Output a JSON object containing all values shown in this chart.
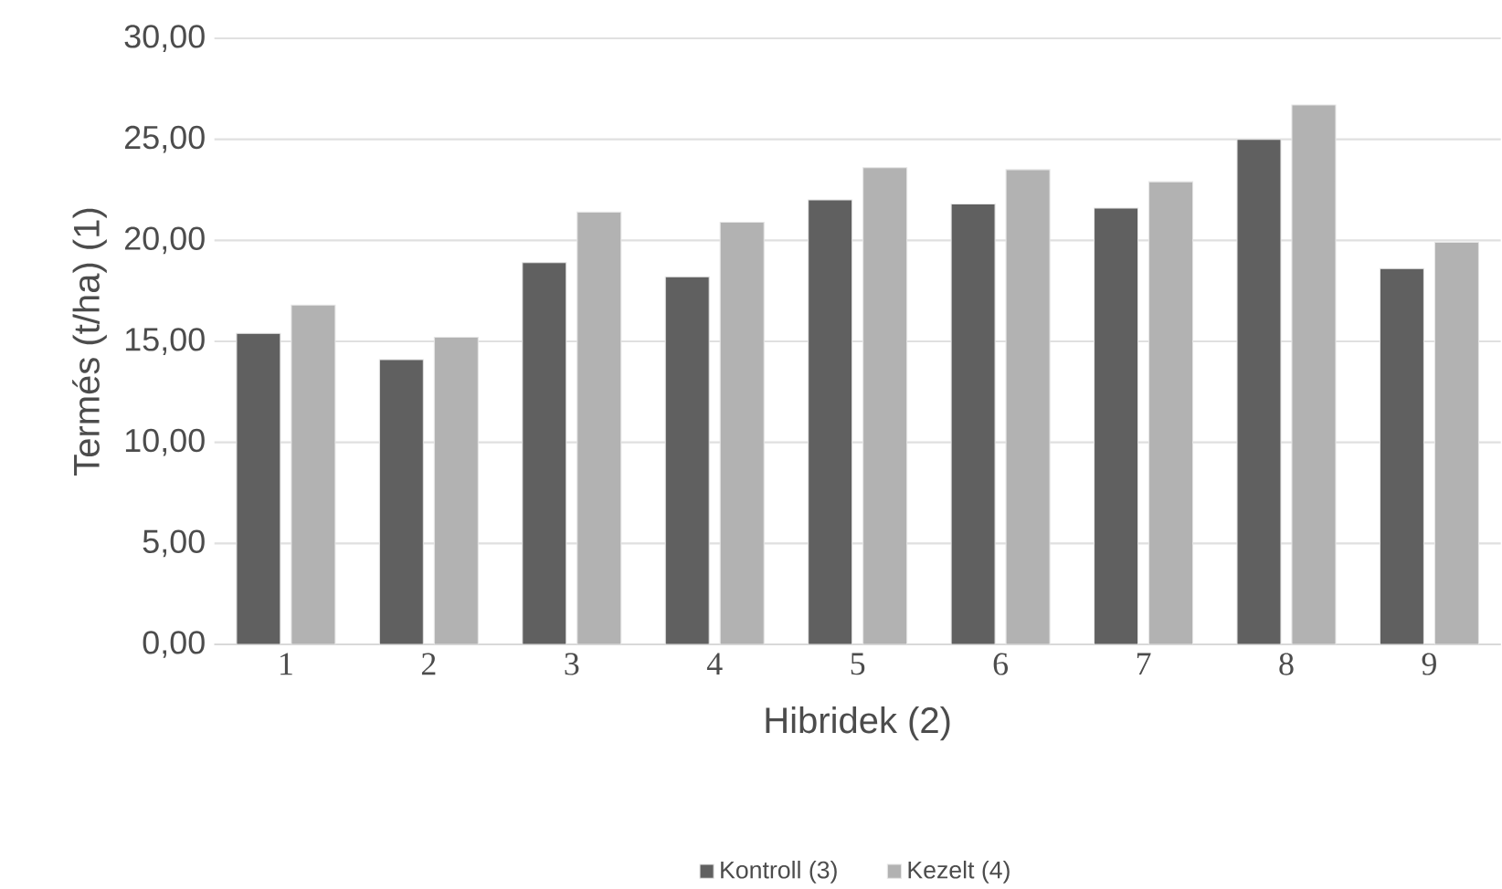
{
  "chart_data": {
    "type": "bar",
    "xlabel": "Hibridek (2)",
    "ylabel": "Termés (t/ha) (1)",
    "categories": [
      "1",
      "2",
      "3",
      "4",
      "5",
      "6",
      "7",
      "8",
      "9"
    ],
    "series": [
      {
        "name": "Kontroll (3)",
        "color": "#606060",
        "values": [
          15.4,
          14.1,
          18.9,
          18.2,
          22.0,
          21.8,
          21.6,
          25.0,
          18.6
        ]
      },
      {
        "name": "Kezelt (4)",
        "color": "#b2b2b2",
        "values": [
          16.8,
          15.2,
          21.4,
          20.9,
          23.6,
          23.5,
          22.9,
          26.7,
          19.9
        ]
      }
    ],
    "ylim": [
      0,
      30
    ],
    "yticks": [
      {
        "value": 0,
        "label": "0,00"
      },
      {
        "value": 5,
        "label": "5,00"
      },
      {
        "value": 10,
        "label": "10,00"
      },
      {
        "value": 15,
        "label": "15,00"
      },
      {
        "value": 20,
        "label": "20,00"
      },
      {
        "value": 25,
        "label": "25,00"
      },
      {
        "value": 30,
        "label": "30,00"
      }
    ],
    "grid": "y",
    "legend": "bottom"
  }
}
